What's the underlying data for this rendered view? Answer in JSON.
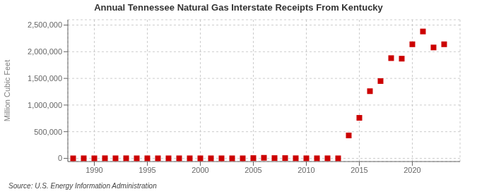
{
  "chart_data": {
    "type": "scatter",
    "title": "Annual Tennessee Natural Gas Interstate Receipts From Kentucky",
    "ylabel": "Million Cubic Feet",
    "annotations": [
      "Source: U.S. Energy Information Administration"
    ],
    "color": "#cc0000",
    "marker": "square",
    "grid": true,
    "xlim": [
      1987.5,
      2024.5
    ],
    "ylim": [
      -60000,
      2600000
    ],
    "xticks": [
      1990,
      1995,
      2000,
      2005,
      2010,
      2015,
      2020
    ],
    "yticks": [
      0,
      {
        "value": 500000,
        "label": "500,000"
      },
      {
        "value": 1000000,
        "label": "1,000,000"
      },
      {
        "value": 1500000,
        "label": "1,500,000"
      },
      {
        "value": 2000000,
        "label": "2,000,000"
      },
      {
        "value": 2500000,
        "label": "2,500,000"
      }
    ],
    "x": [
      1988,
      1989,
      1990,
      1991,
      1992,
      1993,
      1994,
      1995,
      1996,
      1997,
      1998,
      1999,
      2000,
      2001,
      2002,
      2003,
      2004,
      2005,
      2006,
      2007,
      2008,
      2009,
      2010,
      2011,
      2012,
      2013,
      2014,
      2015,
      2016,
      2017,
      2018,
      2019,
      2020,
      2021,
      2022,
      2023
    ],
    "values": [
      0,
      1000,
      500,
      2000,
      1000,
      1500,
      500,
      1000,
      500,
      500,
      500,
      500,
      500,
      500,
      500,
      500,
      500,
      5000,
      10000,
      5000,
      5000,
      2000,
      1000,
      1000,
      1000,
      500,
      430000,
      760000,
      1260000,
      1450000,
      1880000,
      1870000,
      2140000,
      2380000,
      2080000,
      2140000
    ]
  }
}
